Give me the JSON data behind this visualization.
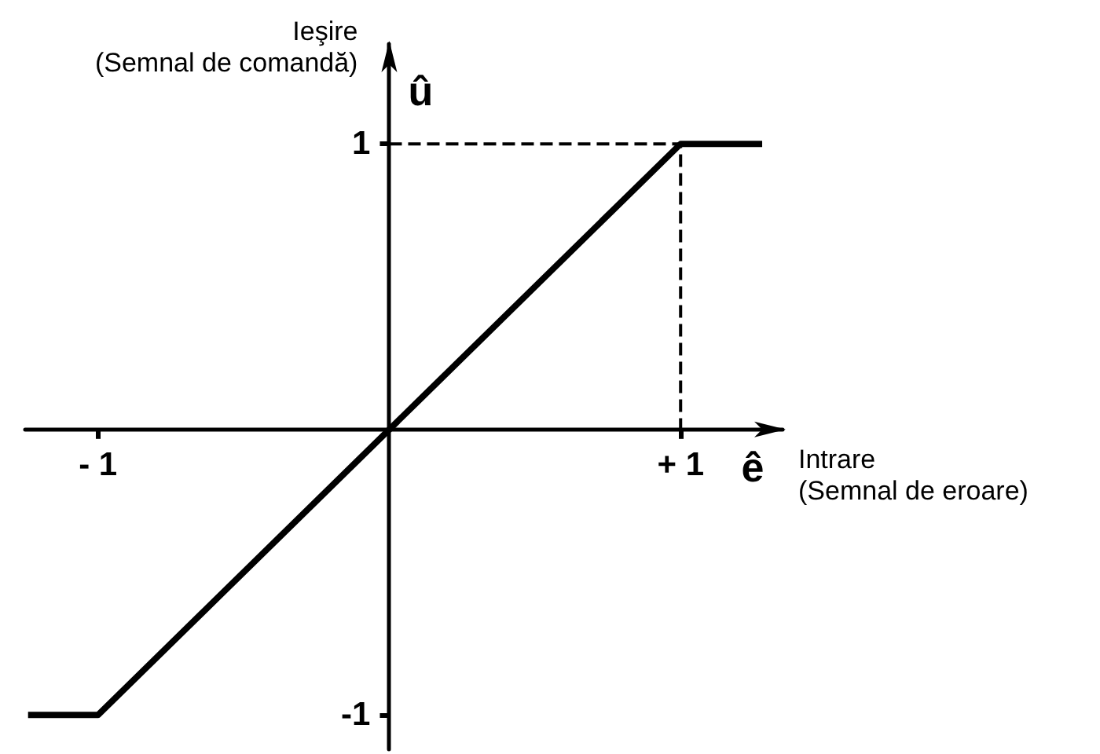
{
  "chart_data": {
    "type": "line",
    "xlabel": "ê",
    "ylabel": "û",
    "annotations": [
      "Ieşire",
      "(Semnal de comandă)",
      "Intrare",
      "(Semnal de eroare)"
    ],
    "xlim": [
      -1.25,
      1.35
    ],
    "ylim": [
      -1.12,
      1.35
    ],
    "xticks": [
      {
        "value": -1,
        "label": "- 1"
      },
      {
        "value": 1,
        "label": "+ 1"
      }
    ],
    "yticks": [
      -1,
      1
    ],
    "marker": "none",
    "series": [
      {
        "x": [
          -1.24,
          -1,
          1,
          1.28
        ],
        "values": [
          -1,
          -1,
          1,
          1
        ],
        "color": "#000000"
      },
      {
        "x": [
          0,
          1,
          1
        ],
        "values": [
          1,
          1,
          0
        ],
        "color": "#000000",
        "line_style": "dashed"
      }
    ]
  }
}
